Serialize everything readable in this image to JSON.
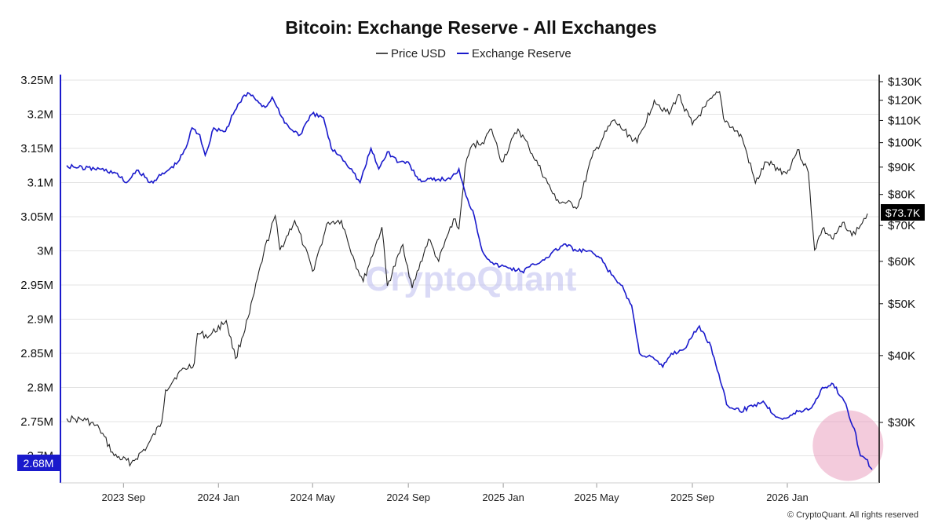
{
  "chart_data": {
    "type": "line",
    "title": "Bitcoin: Exchange Reserve - All Exchanges",
    "legend_position": "top-center",
    "grid": true,
    "x_axis": {
      "ticks": [
        "2023 Sep",
        "2024 Jan",
        "2024 May",
        "2024 Sep",
        "2025 Jan",
        "2025 May",
        "2025 Sep",
        "2026 Jan"
      ]
    },
    "y_left": {
      "label": "",
      "range": [
        2.66,
        3.26
      ],
      "ticks": [
        "3.25M",
        "3.2M",
        "3.15M",
        "3.1M",
        "3.05M",
        "3M",
        "2.95M",
        "2.9M",
        "2.85M",
        "2.8M",
        "2.75M",
        "2.7M"
      ],
      "current_value_label": "2.68M"
    },
    "y_right": {
      "label": "",
      "scale": "log",
      "ticks": [
        "$130K",
        "$120K",
        "$110K",
        "$100K",
        "$90K",
        "$80K",
        "$70K",
        "$60K",
        "$50K",
        "$40K",
        "$30K"
      ],
      "current_value_label": "$73.7K"
    },
    "series": [
      {
        "name": "Price USD",
        "color": "#222222",
        "axis": "right",
        "points": [
          [
            "2023-06-20",
            30500
          ],
          [
            "2023-07-01",
            30400
          ],
          [
            "2023-07-15",
            30300
          ],
          [
            "2023-08-01",
            29200
          ],
          [
            "2023-08-20",
            26000
          ],
          [
            "2023-09-11",
            25200
          ],
          [
            "2023-10-01",
            27000
          ],
          [
            "2023-10-20",
            30000
          ],
          [
            "2023-10-25",
            34500
          ],
          [
            "2023-11-10",
            37000
          ],
          [
            "2023-12-01",
            38700
          ],
          [
            "2023-12-05",
            44000
          ],
          [
            "2023-12-20",
            43500
          ],
          [
            "2024-01-11",
            46500
          ],
          [
            "2024-01-23",
            39500
          ],
          [
            "2024-02-10",
            48000
          ],
          [
            "2024-02-28",
            62000
          ],
          [
            "2024-03-14",
            73000
          ],
          [
            "2024-03-20",
            63000
          ],
          [
            "2024-04-08",
            71500
          ],
          [
            "2024-04-20",
            64000
          ],
          [
            "2024-05-01",
            57500
          ],
          [
            "2024-05-21",
            71000
          ],
          [
            "2024-06-07",
            71500
          ],
          [
            "2024-06-24",
            60000
          ],
          [
            "2024-07-05",
            55000
          ],
          [
            "2024-07-29",
            69500
          ],
          [
            "2024-08-05",
            54000
          ],
          [
            "2024-08-25",
            64500
          ],
          [
            "2024-09-06",
            53500
          ],
          [
            "2024-09-27",
            66000
          ],
          [
            "2024-10-10",
            60000
          ],
          [
            "2024-10-29",
            72000
          ],
          [
            "2024-11-05",
            69000
          ],
          [
            "2024-11-13",
            90000
          ],
          [
            "2024-11-22",
            99000
          ],
          [
            "2024-12-05",
            100000
          ],
          [
            "2024-12-17",
            106000
          ],
          [
            "2024-12-30",
            92000
          ],
          [
            "2025-01-20",
            106000
          ],
          [
            "2025-02-03",
            98000
          ],
          [
            "2025-02-27",
            84000
          ],
          [
            "2025-03-10",
            78000
          ],
          [
            "2025-04-07",
            76000
          ],
          [
            "2025-04-25",
            94000
          ],
          [
            "2025-05-22",
            110000
          ],
          [
            "2025-06-22",
            100000
          ],
          [
            "2025-07-14",
            120000
          ],
          [
            "2025-08-02",
            113000
          ],
          [
            "2025-08-14",
            123000
          ],
          [
            "2025-09-01",
            108000
          ],
          [
            "2025-09-18",
            117000
          ],
          [
            "2025-10-06",
            124500
          ],
          [
            "2025-10-11",
            111000
          ],
          [
            "2025-11-04",
            102000
          ],
          [
            "2025-11-21",
            84000
          ],
          [
            "2025-12-05",
            92000
          ],
          [
            "2025-12-31",
            87500
          ],
          [
            "2026-01-14",
            97000
          ],
          [
            "2026-01-28",
            88000
          ],
          [
            "2026-02-05",
            63000
          ],
          [
            "2026-02-15",
            69000
          ],
          [
            "2026-03-01",
            66000
          ],
          [
            "2026-03-15",
            71000
          ],
          [
            "2026-03-25",
            67000
          ],
          [
            "2026-04-05",
            70000
          ],
          [
            "2026-04-14",
            73700
          ]
        ]
      },
      {
        "name": "Exchange Reserve",
        "color": "#1a1acc",
        "axis": "left",
        "points": [
          [
            "2023-06-20",
            3.125
          ],
          [
            "2023-07-05",
            3.122
          ],
          [
            "2023-08-01",
            3.12
          ],
          [
            "2023-08-20",
            3.115
          ],
          [
            "2023-09-05",
            3.1
          ],
          [
            "2023-09-20",
            3.118
          ],
          [
            "2023-10-05",
            3.1
          ],
          [
            "2023-10-25",
            3.115
          ],
          [
            "2023-11-10",
            3.13
          ],
          [
            "2023-11-20",
            3.15
          ],
          [
            "2023-11-28",
            3.18
          ],
          [
            "2023-12-08",
            3.17
          ],
          [
            "2023-12-15",
            3.14
          ],
          [
            "2023-12-26",
            3.18
          ],
          [
            "2024-01-10",
            3.175
          ],
          [
            "2024-01-20",
            3.2
          ],
          [
            "2024-02-01",
            3.225
          ],
          [
            "2024-02-10",
            3.23
          ],
          [
            "2024-02-20",
            3.22
          ],
          [
            "2024-03-01",
            3.21
          ],
          [
            "2024-03-10",
            3.225
          ],
          [
            "2024-03-20",
            3.2
          ],
          [
            "2024-04-01",
            3.18
          ],
          [
            "2024-04-15",
            3.17
          ],
          [
            "2024-04-30",
            3.2
          ],
          [
            "2024-05-15",
            3.195
          ],
          [
            "2024-05-25",
            3.15
          ],
          [
            "2024-06-05",
            3.14
          ],
          [
            "2024-06-20",
            3.12
          ],
          [
            "2024-07-01",
            3.1
          ],
          [
            "2024-07-15",
            3.15
          ],
          [
            "2024-07-25",
            3.12
          ],
          [
            "2024-08-05",
            3.145
          ],
          [
            "2024-08-20",
            3.13
          ],
          [
            "2024-09-01",
            3.13
          ],
          [
            "2024-09-10",
            3.11
          ],
          [
            "2024-09-20",
            3.102
          ],
          [
            "2024-10-10",
            3.105
          ],
          [
            "2024-10-25",
            3.105
          ],
          [
            "2024-11-05",
            3.12
          ],
          [
            "2024-11-12",
            3.09
          ],
          [
            "2024-11-25",
            3.05
          ],
          [
            "2024-12-05",
            3.0
          ],
          [
            "2024-12-20",
            2.98
          ],
          [
            "2025-01-10",
            2.975
          ],
          [
            "2025-01-25",
            2.97
          ],
          [
            "2025-02-10",
            2.98
          ],
          [
            "2025-02-25",
            2.99
          ],
          [
            "2025-03-20",
            3.01
          ],
          [
            "2025-04-05",
            3.0
          ],
          [
            "2025-04-20",
            3.0
          ],
          [
            "2025-05-05",
            2.99
          ],
          [
            "2025-05-20",
            2.965
          ],
          [
            "2025-06-01",
            2.95
          ],
          [
            "2025-06-15",
            2.92
          ],
          [
            "2025-06-25",
            2.85
          ],
          [
            "2025-07-10",
            2.845
          ],
          [
            "2025-07-25",
            2.83
          ],
          [
            "2025-08-05",
            2.85
          ],
          [
            "2025-08-20",
            2.855
          ],
          [
            "2025-09-01",
            2.875
          ],
          [
            "2025-09-10",
            2.89
          ],
          [
            "2025-09-25",
            2.86
          ],
          [
            "2025-10-05",
            2.82
          ],
          [
            "2025-10-15",
            2.775
          ],
          [
            "2025-11-01",
            2.765
          ],
          [
            "2025-11-20",
            2.775
          ],
          [
            "2025-12-01",
            2.78
          ],
          [
            "2025-12-15",
            2.76
          ],
          [
            "2025-12-30",
            2.755
          ],
          [
            "2026-01-15",
            2.765
          ],
          [
            "2026-02-01",
            2.77
          ],
          [
            "2026-02-15",
            2.8
          ],
          [
            "2026-03-01",
            2.805
          ],
          [
            "2026-03-15",
            2.78
          ],
          [
            "2026-03-28",
            2.74
          ],
          [
            "2026-04-05",
            2.7
          ],
          [
            "2026-04-12",
            2.695
          ],
          [
            "2026-04-20",
            2.68
          ]
        ]
      }
    ],
    "highlight": {
      "type": "circle",
      "date": "2026-03-20",
      "value": 2.715,
      "color": "#e9a0c0"
    },
    "watermark": "CryptoQuant",
    "copyright": "© CryptoQuant. All rights reserved"
  }
}
